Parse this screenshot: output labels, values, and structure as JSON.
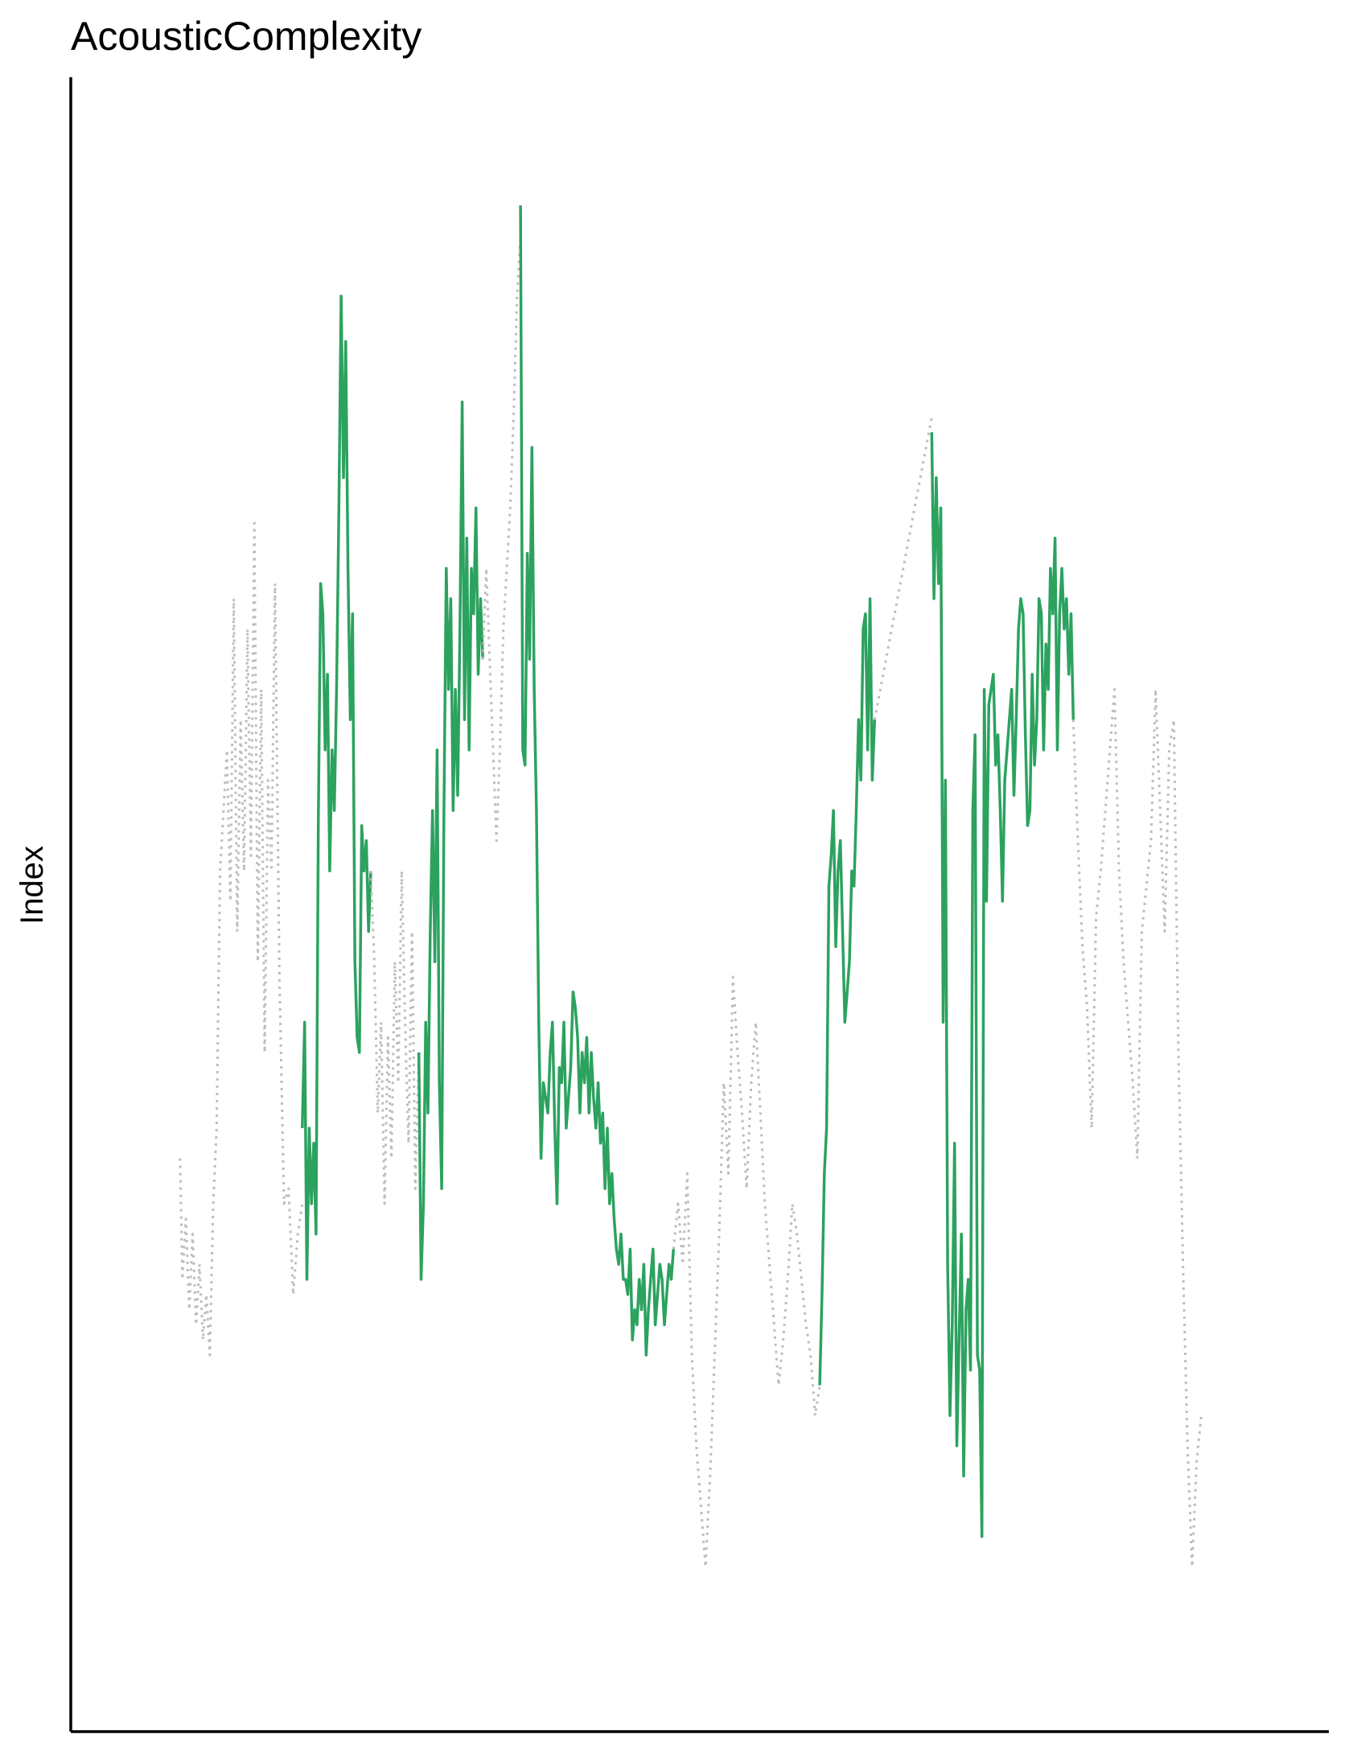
{
  "chart_data": {
    "type": "line",
    "title": "AcousticComplexity",
    "xlabel": "",
    "ylabel": "Index",
    "grid": false,
    "legend": "none",
    "x_tick_labels": [],
    "y_tick_labels": [],
    "xlim": [
      0,
      1000
    ],
    "ylim": [
      0,
      1000
    ],
    "colors": {
      "highlight": "#2ca25f",
      "background": "#bdbdbd",
      "axis": "#000000"
    },
    "series": [
      {
        "style": "dotted",
        "color": "#bdbdbd",
        "x": [
          45,
          47,
          50,
          53,
          56,
          59,
          62,
          65,
          68,
          71,
          74,
          77,
          80,
          83,
          86,
          89,
          92,
          95,
          98,
          101,
          104,
          107,
          110,
          113,
          116,
          119,
          122,
          125,
          128,
          132,
          136,
          140,
          144,
          148,
          152
        ],
        "y": [
          330,
          250,
          290,
          230,
          280,
          220,
          260,
          210,
          240,
          200,
          300,
          350,
          520,
          560,
          600,
          500,
          700,
          480,
          620,
          520,
          680,
          530,
          750,
          460,
          640,
          400,
          580,
          520,
          710,
          450,
          300,
          310,
          240,
          280,
          300
        ]
      },
      {
        "style": "solid",
        "color": "#2ca25f",
        "x": [
          152,
          154,
          156,
          158,
          160,
          162,
          164,
          166,
          168,
          170,
          172,
          174,
          176,
          178,
          180,
          182,
          184,
          186,
          188,
          190,
          192,
          194,
          196,
          198,
          200,
          202,
          204,
          206,
          208,
          210,
          212
        ],
        "y": [
          350,
          420,
          250,
          350,
          300,
          340,
          280,
          550,
          710,
          690,
          600,
          650,
          520,
          600,
          560,
          640,
          760,
          900,
          780,
          870,
          720,
          620,
          690,
          460,
          410,
          400,
          550,
          520,
          540,
          480,
          520
        ]
      },
      {
        "style": "dotted",
        "color": "#bdbdbd",
        "x": [
          212,
          215,
          218,
          221,
          224,
          227,
          230,
          233,
          236,
          239,
          242,
          245,
          248,
          251,
          254
        ],
        "y": [
          520,
          460,
          360,
          420,
          300,
          410,
          330,
          460,
          380,
          520,
          420,
          340,
          480,
          310,
          400
        ]
      },
      {
        "style": "solid",
        "color": "#2ca25f",
        "x": [
          254,
          256,
          258,
          260,
          262,
          264,
          266,
          268,
          270,
          272,
          274,
          276,
          278,
          280,
          282,
          284,
          286,
          288,
          290,
          292,
          294,
          296,
          298,
          300,
          302,
          304,
          306,
          308,
          310
        ],
        "y": [
          400,
          250,
          300,
          420,
          360,
          480,
          560,
          460,
          600,
          380,
          310,
          560,
          720,
          640,
          700,
          560,
          640,
          570,
          680,
          830,
          620,
          740,
          600,
          720,
          690,
          760,
          650,
          700,
          660
        ]
      },
      {
        "style": "dotted",
        "color": "#bdbdbd",
        "x": [
          310,
          313,
          316,
          319,
          322,
          325,
          328,
          331,
          334,
          337,
          340,
          343
        ],
        "y": [
          660,
          720,
          660,
          600,
          540,
          600,
          680,
          720,
          760,
          820,
          900,
          940
        ]
      },
      {
        "style": "solid",
        "color": "#2ca25f",
        "x": [
          343,
          345,
          347,
          349,
          351,
          353,
          355,
          357,
          359,
          361,
          363,
          365,
          367,
          369,
          371,
          373,
          375,
          377,
          379,
          381,
          383,
          385,
          387,
          389,
          391,
          393,
          395,
          397,
          399,
          401,
          403,
          405,
          407,
          409,
          411,
          413,
          415,
          417,
          419,
          421,
          423,
          425,
          427,
          429,
          431,
          433,
          435,
          437,
          439,
          441,
          443,
          445,
          447,
          449,
          451,
          453,
          455,
          457,
          459,
          461,
          463,
          465,
          467,
          469,
          471,
          473,
          475,
          477
        ],
        "y": [
          960,
          600,
          590,
          730,
          660,
          800,
          640,
          560,
          420,
          330,
          380,
          370,
          360,
          400,
          420,
          350,
          300,
          390,
          380,
          420,
          350,
          370,
          390,
          440,
          430,
          410,
          360,
          400,
          380,
          410,
          360,
          400,
          370,
          350,
          380,
          340,
          360,
          310,
          350,
          300,
          320,
          290,
          270,
          260,
          280,
          250,
          250,
          240,
          270,
          210,
          230,
          220,
          250,
          230,
          260,
          200,
          230,
          250,
          270,
          220,
          240,
          260,
          250,
          220,
          240,
          260,
          250,
          270
        ]
      },
      {
        "style": "dotted",
        "color": "#bdbdbd",
        "x": [
          477,
          481,
          485,
          489,
          493,
          497,
          501,
          505,
          509,
          513,
          517,
          521,
          525,
          529,
          533,
          537,
          541,
          545,
          549,
          553,
          557,
          561,
          565,
          569,
          573,
          577,
          581,
          585,
          589,
          593,
          597,
          601,
          605
        ],
        "y": [
          270,
          300,
          260,
          320,
          200,
          140,
          100,
          60,
          120,
          200,
          280,
          380,
          320,
          450,
          400,
          360,
          310,
          380,
          420,
          360,
          300,
          260,
          220,
          180,
          210,
          250,
          300,
          280,
          250,
          220,
          200,
          160,
          180
        ]
      },
      {
        "style": "solid",
        "color": "#2ca25f",
        "x": [
          605,
          607,
          609,
          611,
          613,
          615,
          617,
          619,
          621,
          623,
          625,
          627,
          629,
          631,
          633,
          635,
          637,
          639,
          641,
          643,
          645,
          647,
          649,
          651,
          653
        ],
        "y": [
          180,
          240,
          320,
          350,
          510,
          530,
          560,
          470,
          520,
          540,
          480,
          420,
          440,
          460,
          520,
          510,
          560,
          620,
          580,
          680,
          690,
          600,
          700,
          580,
          620
        ]
      },
      {
        "style": "dotted",
        "color": "#bdbdbd",
        "x": [
          653,
          658,
          663,
          668,
          673,
          678,
          683,
          688,
          693,
          698,
          703
        ],
        "y": [
          620,
          640,
          660,
          680,
          700,
          720,
          740,
          760,
          780,
          800,
          820
        ]
      },
      {
        "style": "solid",
        "color": "#2ca25f",
        "x": [
          703,
          705,
          707,
          709,
          711,
          713,
          715,
          717,
          719,
          721,
          723,
          725,
          727,
          729,
          731,
          733,
          735,
          737,
          739,
          741,
          743,
          745,
          747,
          749,
          751,
          753,
          755,
          757,
          759,
          761,
          763,
          765,
          767,
          769,
          771,
          773,
          775,
          777,
          779,
          781,
          783,
          785,
          787,
          789,
          791,
          793,
          795,
          797,
          799,
          801,
          803,
          805,
          807,
          809,
          811,
          813,
          815,
          817,
          819,
          821,
          823,
          825,
          827
        ],
        "y": [
          810,
          700,
          780,
          710,
          760,
          420,
          580,
          260,
          160,
          220,
          340,
          140,
          210,
          280,
          120,
          230,
          250,
          190,
          560,
          610,
          200,
          190,
          80,
          640,
          500,
          630,
          640,
          650,
          590,
          610,
          560,
          500,
          580,
          600,
          620,
          640,
          570,
          620,
          680,
          700,
          690,
          610,
          550,
          560,
          650,
          590,
          620,
          700,
          690,
          600,
          670,
          640,
          720,
          690,
          740,
          600,
          690,
          720,
          680,
          700,
          650,
          690,
          620
        ]
      },
      {
        "style": "dotted",
        "color": "#bdbdbd",
        "x": [
          827,
          831,
          835,
          839,
          843,
          847,
          851,
          855,
          859,
          863,
          867,
          871,
          875,
          879,
          883,
          887,
          891,
          895,
          899,
          903,
          907,
          911,
          915,
          919,
          923,
          927,
          931,
          935,
          939
        ],
        "y": [
          620,
          540,
          470,
          430,
          350,
          490,
          520,
          560,
          600,
          640,
          520,
          460,
          420,
          380,
          330,
          480,
          510,
          540,
          640,
          560,
          480,
          600,
          620,
          400,
          260,
          140,
          60,
          130,
          160
        ]
      }
    ]
  }
}
